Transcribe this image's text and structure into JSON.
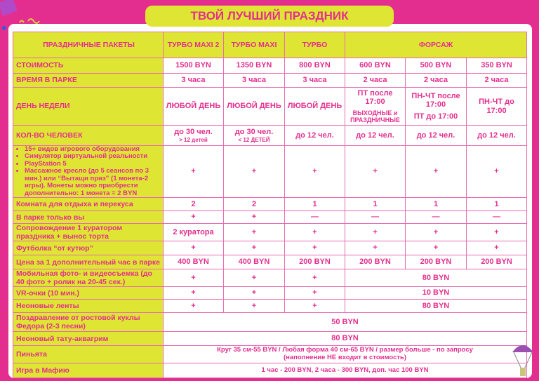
{
  "title": "ТВОЙ ЛУЧШИЙ ПРАЗДНИК",
  "header": {
    "label": "ПРАЗДНИЧНЫЕ ПАКЕТЫ",
    "cols": [
      "ТУРБО MAXI 2",
      "ТУРБО MAXI",
      "ТУРБО",
      "ФОРСАЖ"
    ]
  },
  "rows": {
    "price": {
      "label": "СТОИМОСТЬ",
      "values": [
        "1500 BYN",
        "1350 BYN",
        "800 BYN",
        "600 BYN",
        "500 BYN",
        "350 BYN"
      ]
    },
    "time": {
      "label": "ВРЕМЯ В ПАРКЕ",
      "values": [
        "3 часа",
        "3 часа",
        "3 часа",
        "2 часа",
        "2 часа",
        "2 часа"
      ]
    },
    "day": {
      "label": "ДЕНЬ НЕДЕЛИ",
      "values": [
        "ЛЮБОЙ ДЕНЬ",
        "ЛЮБОЙ ДЕНЬ",
        "ЛЮБОЙ ДЕНЬ",
        "ПТ после 17:00",
        "ПН-ЧТ после 17:00",
        "ПН-ЧТ до 17:00"
      ],
      "sub": [
        "ВЫХОДНЫЕ и ПРАЗДНИЧНЫЕ",
        "ПТ до 17:00"
      ]
    },
    "people": {
      "label": "КОЛ-ВО ЧЕЛОВЕК",
      "values": [
        "до 30 чел.",
        "до 30 чел.",
        "до 12 чел.",
        "до 12 чел.",
        "до 12 чел.",
        "до 12 чел."
      ],
      "sub": [
        "> 12 детей",
        "< 12 ДЕТЕЙ"
      ]
    },
    "features": {
      "items": [
        "15+ видов игрового оборудования",
        "Симулятор виртуальной реальности",
        "PlayStation 5",
        "Массажное кресло (до 5 сеансов по 3 мин.) или “Вытащи приз” (1 монета-2 игры). Монеты можно приобрести дополнительно: 1 монета = 2 BYN"
      ],
      "values": [
        "+",
        "+",
        "+",
        "+",
        "+",
        "+"
      ]
    },
    "room": {
      "label": "Комната для отдыха и перекуса",
      "values": [
        "2",
        "2",
        "1",
        "1",
        "1",
        "1"
      ]
    },
    "alone": {
      "label": "В парке только вы",
      "values": [
        "+",
        "+",
        "—",
        "—",
        "—",
        "—"
      ]
    },
    "curator": {
      "label": "Сопровождение 1 куратором праздника + вынос торта",
      "values": [
        "2 куратора",
        "+",
        "+",
        "+",
        "+",
        "+"
      ]
    },
    "tshirt": {
      "label": "Футболка “от кутюр”",
      "values": [
        "+",
        "+",
        "+",
        "+",
        "+",
        "+"
      ]
    },
    "hour": {
      "label": "Цена за 1 дополнительный час в парке",
      "values": [
        "400 BYN",
        "400 BYN",
        "200 BYN",
        "200 BYN",
        "200 BYN",
        "200 BYN"
      ]
    },
    "photo": {
      "label": "Мобильная фото- и видеосъемка (до 40 фото +   ролик на 20-45 сек.)",
      "values": [
        "+",
        "+",
        "+",
        "80 BYN"
      ]
    },
    "vr": {
      "label": "VR-очки (10 мин.)",
      "values": [
        "+",
        "+",
        "+",
        "10 BYN"
      ]
    },
    "neon": {
      "label": "Неоновые ленты",
      "values": [
        "+",
        "+",
        "+",
        "80 BYN"
      ]
    },
    "doll": {
      "label": "Поздравление от ростовой куклы Федора (2-3 песни)",
      "value": "50 BYN"
    },
    "tattoo": {
      "label": "Неоновый тату-аквагрим",
      "value": "80 BYN"
    },
    "pinata": {
      "label": "Пиньята",
      "value": "Круг 35 см-55 BYN / Любая форма 40 см-65 BYN / размер больше - по запросу",
      "note": "(наполнение НЕ входит в стоимость)"
    },
    "mafia": {
      "label": "Игра в Мафию",
      "value": "1 час - 200 BYN, 2 часа - 300 BYN, доп. час 100 BYN"
    }
  },
  "colors": {
    "pink": "#e42e8f",
    "yellow": "#dfe533",
    "border": "#e86bb2"
  }
}
